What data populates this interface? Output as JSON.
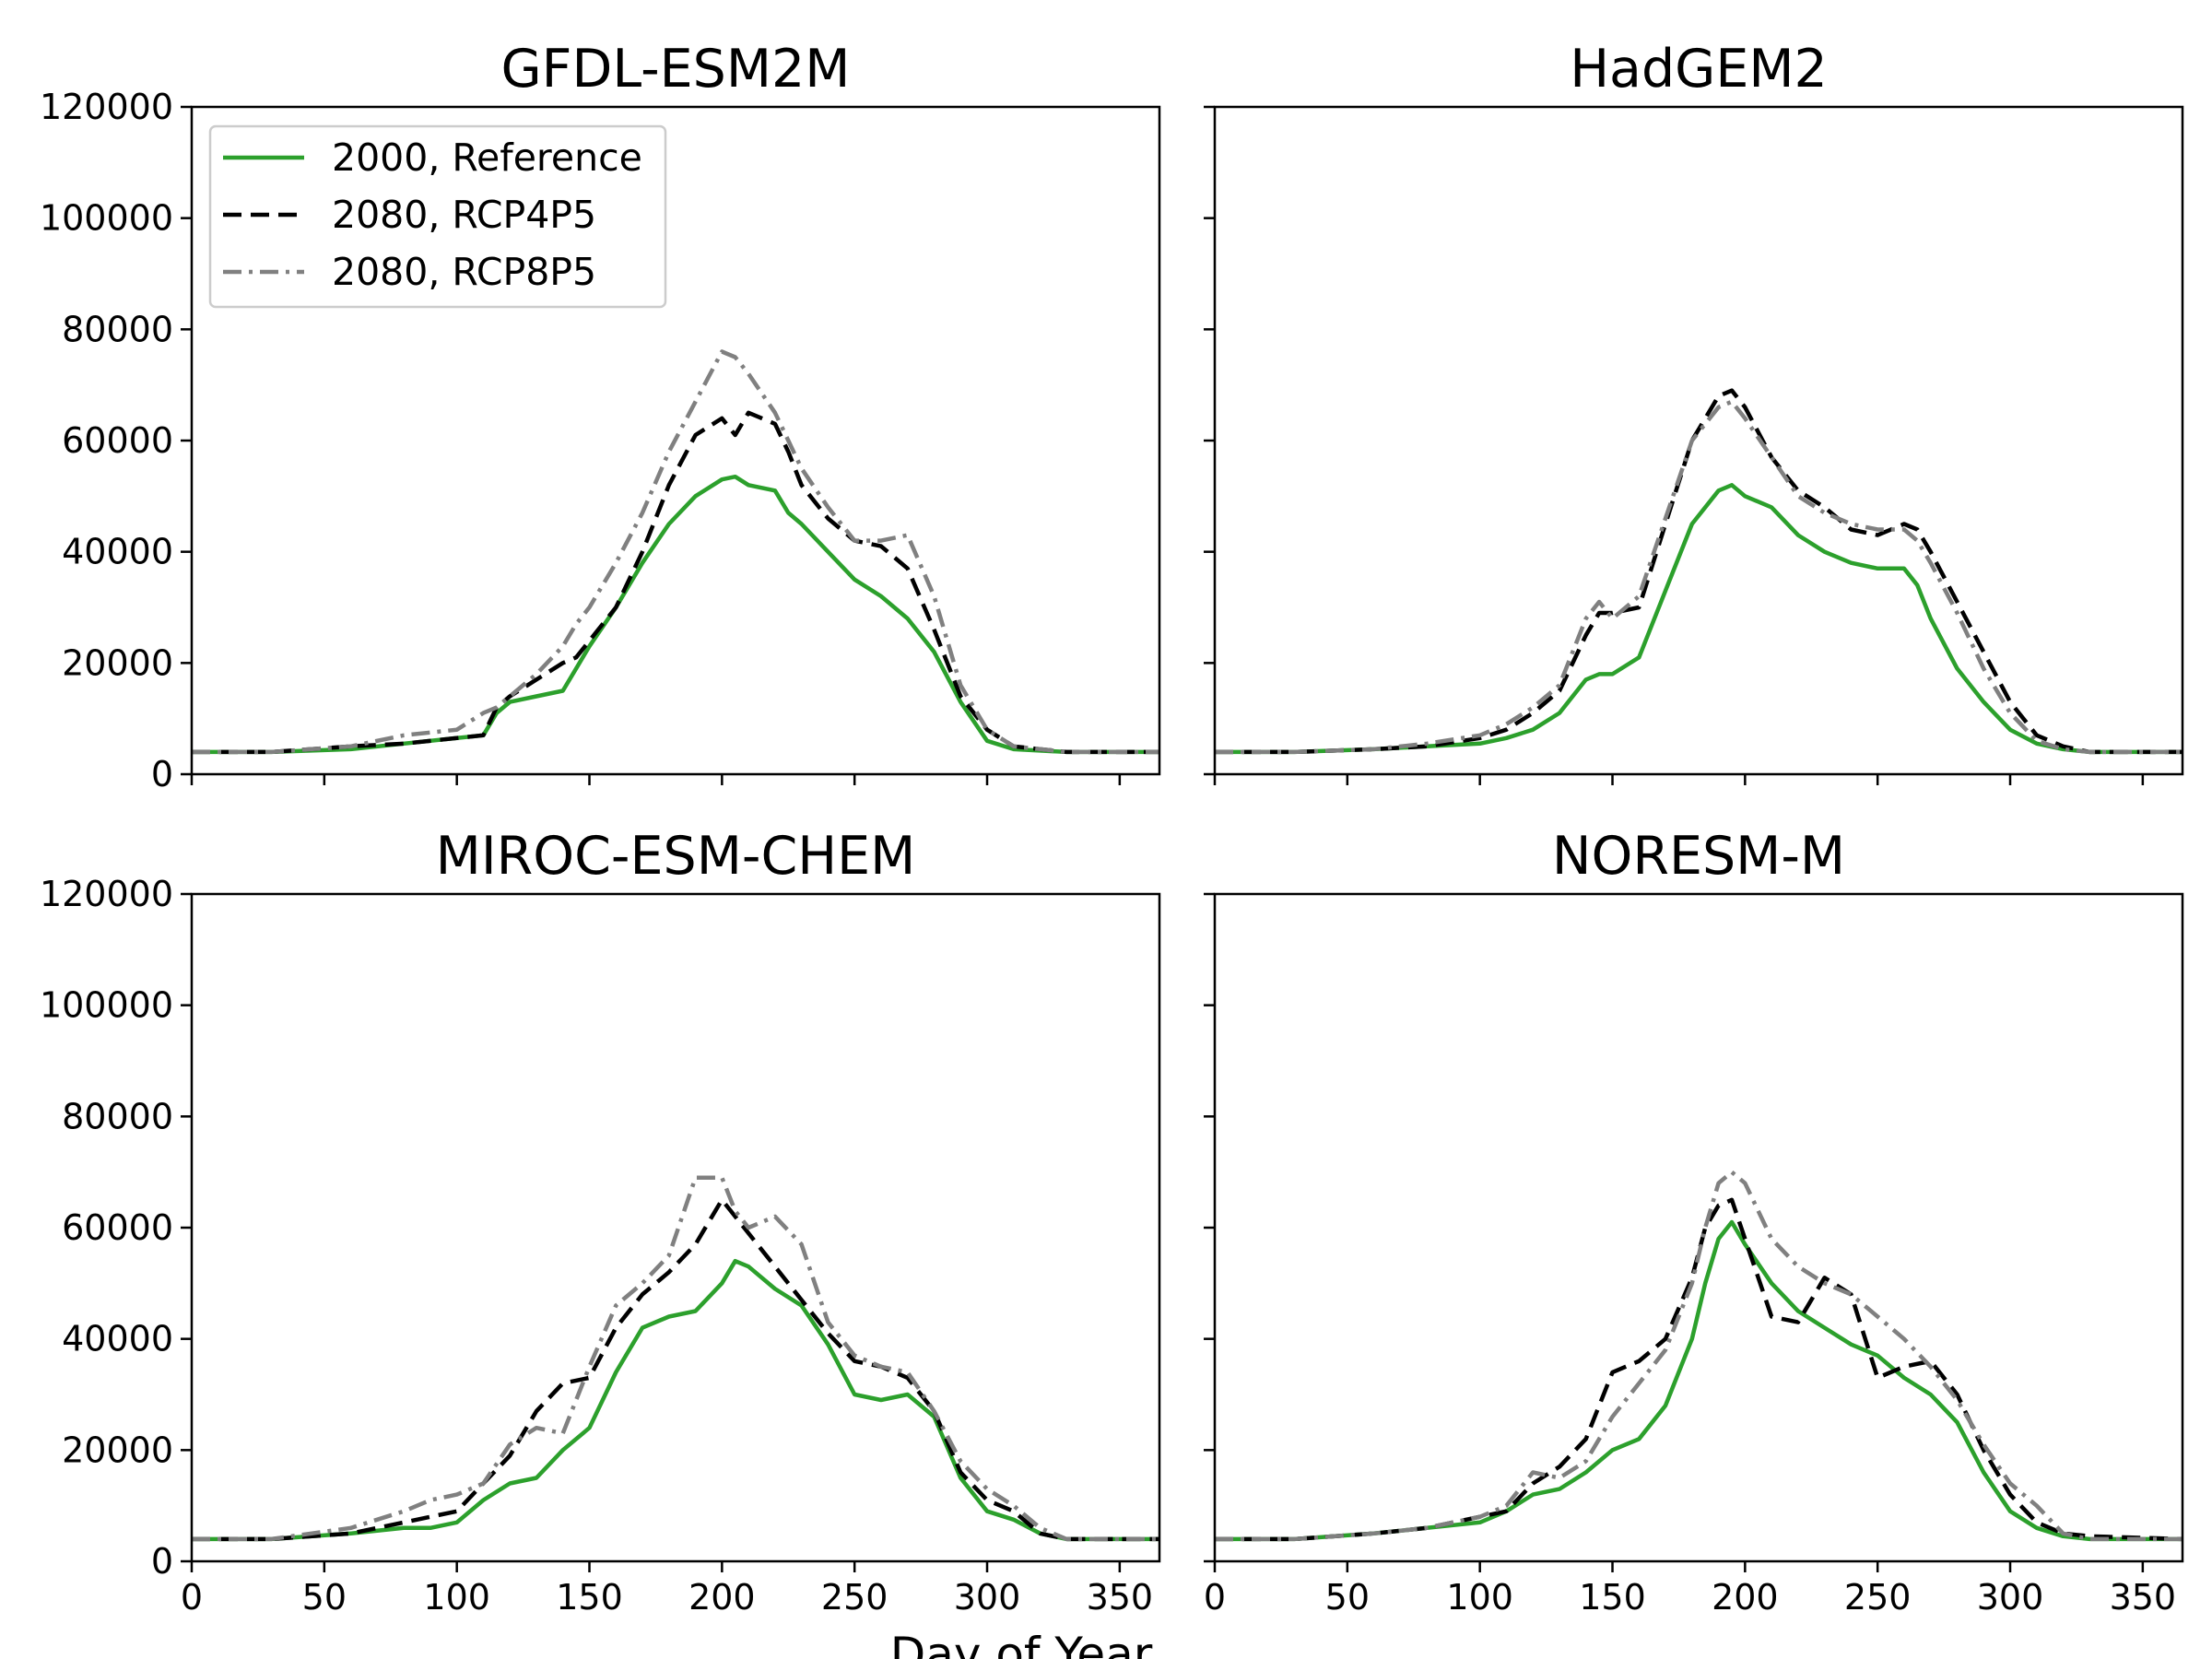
{
  "figure": {
    "xlabel": "Day of Year"
  },
  "legend": {
    "entries": [
      {
        "label": "2000, Reference",
        "color": "#2ca02c",
        "dash": "solid"
      },
      {
        "label": "2080, RCP4P5",
        "color": "#000000",
        "dash": "dashed"
      },
      {
        "label": "2080, RCP8P5",
        "color": "#808080",
        "dash": "dashdot"
      }
    ],
    "placement": "upper-left of first panel"
  },
  "chart_data": [
    {
      "type": "line",
      "title": "GFDL-ESM2M",
      "xlim": [
        0,
        365
      ],
      "ylim": [
        0,
        120000
      ],
      "xticks": [
        "0",
        "50",
        "100",
        "150",
        "200",
        "250",
        "300",
        "350"
      ],
      "yticks": [
        "0",
        "20000",
        "40000",
        "60000",
        "80000",
        "100000",
        "120000"
      ],
      "x": [
        0,
        30,
        60,
        80,
        100,
        110,
        115,
        120,
        130,
        140,
        145,
        150,
        160,
        170,
        180,
        190,
        200,
        205,
        210,
        220,
        225,
        230,
        240,
        250,
        260,
        270,
        280,
        290,
        300,
        310,
        330,
        365
      ],
      "series": [
        {
          "name": "2000, Reference",
          "values": [
            4000,
            4000,
            4500,
            5500,
            6500,
            7000,
            11000,
            13000,
            14000,
            15000,
            19000,
            23000,
            30000,
            38000,
            45000,
            50000,
            53000,
            53500,
            52000,
            51000,
            47000,
            45000,
            40000,
            35000,
            32000,
            28000,
            22000,
            13000,
            6000,
            4500,
            4000,
            4000
          ]
        },
        {
          "name": "2080, RCP4P5",
          "values": [
            4000,
            4000,
            5000,
            5500,
            6500,
            7000,
            12000,
            14000,
            17000,
            20000,
            21000,
            24000,
            30000,
            40000,
            52000,
            61000,
            64000,
            61000,
            65000,
            63000,
            58000,
            52000,
            46000,
            42000,
            41000,
            37000,
            26000,
            14000,
            8000,
            5000,
            4000,
            4000
          ]
        },
        {
          "name": "2080, RCP8P5",
          "values": [
            4000,
            4000,
            5000,
            7000,
            8000,
            11000,
            12000,
            14000,
            18000,
            23000,
            27000,
            30000,
            38000,
            47000,
            58000,
            67000,
            76000,
            75000,
            72000,
            65000,
            60000,
            55000,
            48000,
            42000,
            42000,
            43000,
            32000,
            16000,
            8000,
            5000,
            4000,
            4000
          ]
        }
      ]
    },
    {
      "type": "line",
      "title": "HadGEM2",
      "xlim": [
        0,
        365
      ],
      "ylim": [
        0,
        120000
      ],
      "x": [
        0,
        30,
        60,
        80,
        100,
        110,
        120,
        130,
        140,
        145,
        150,
        160,
        170,
        180,
        190,
        195,
        200,
        210,
        220,
        230,
        240,
        250,
        260,
        265,
        270,
        280,
        290,
        300,
        310,
        320,
        330,
        365
      ],
      "series": [
        {
          "name": "2000, Reference",
          "values": [
            4000,
            4000,
            4500,
            5000,
            5500,
            6500,
            8000,
            11000,
            17000,
            18000,
            18000,
            21000,
            33000,
            45000,
            51000,
            52000,
            50000,
            48000,
            43000,
            40000,
            38000,
            37000,
            37000,
            34000,
            28000,
            19000,
            13000,
            8000,
            5500,
            4500,
            4000,
            4000
          ]
        },
        {
          "name": "2080, RCP4P5",
          "values": [
            4000,
            4000,
            4500,
            5000,
            6500,
            8000,
            11000,
            15000,
            25000,
            29000,
            29000,
            30000,
            45000,
            60000,
            68000,
            69000,
            66000,
            57000,
            51000,
            48000,
            44000,
            43000,
            45000,
            44000,
            40000,
            31000,
            22000,
            13000,
            7000,
            5000,
            4000,
            4000
          ]
        },
        {
          "name": "2080, RCP8P5",
          "values": [
            4000,
            4000,
            4500,
            5500,
            7000,
            9000,
            12000,
            16000,
            28000,
            31000,
            28000,
            32000,
            46000,
            60000,
            66000,
            67000,
            64000,
            57000,
            50000,
            47000,
            45000,
            44000,
            44000,
            42000,
            38000,
            29000,
            19000,
            11000,
            6000,
            4500,
            4000,
            4000
          ]
        }
      ]
    },
    {
      "type": "line",
      "title": "MIROC-ESM-CHEM",
      "xlim": [
        0,
        365
      ],
      "ylim": [
        0,
        120000
      ],
      "x": [
        0,
        30,
        60,
        80,
        90,
        100,
        110,
        120,
        130,
        140,
        150,
        160,
        170,
        180,
        190,
        200,
        205,
        210,
        220,
        230,
        240,
        250,
        260,
        270,
        280,
        290,
        300,
        310,
        320,
        330,
        365
      ],
      "series": [
        {
          "name": "2000, Reference",
          "values": [
            4000,
            4000,
            5000,
            6000,
            6000,
            7000,
            11000,
            14000,
            15000,
            20000,
            24000,
            34000,
            42000,
            44000,
            45000,
            50000,
            54000,
            53000,
            49000,
            46000,
            39000,
            30000,
            29000,
            30000,
            26000,
            15000,
            9000,
            7500,
            5000,
            4000,
            4000
          ]
        },
        {
          "name": "2080, RCP4P5",
          "values": [
            4000,
            4000,
            5000,
            7000,
            8000,
            9000,
            14000,
            19000,
            27000,
            32000,
            33000,
            42000,
            48000,
            52000,
            57000,
            65000,
            62000,
            59000,
            53000,
            47000,
            41000,
            36000,
            35000,
            33000,
            27000,
            16000,
            11000,
            9000,
            5000,
            4000,
            4000
          ]
        },
        {
          "name": "2080, RCP8P5",
          "values": [
            4000,
            4000,
            6000,
            9000,
            11000,
            12000,
            14000,
            21000,
            24000,
            23000,
            35000,
            46000,
            50000,
            55000,
            69000,
            69000,
            63000,
            60000,
            62000,
            57000,
            43000,
            37000,
            35000,
            34000,
            27000,
            18000,
            13000,
            10000,
            6000,
            4000,
            4000
          ]
        }
      ]
    },
    {
      "type": "line",
      "title": "NORESM-M",
      "xlim": [
        0,
        365
      ],
      "ylim": [
        0,
        120000
      ],
      "x": [
        0,
        30,
        60,
        80,
        100,
        110,
        120,
        130,
        140,
        150,
        160,
        170,
        180,
        185,
        190,
        195,
        200,
        210,
        220,
        230,
        240,
        250,
        260,
        270,
        280,
        290,
        300,
        310,
        320,
        330,
        365
      ],
      "series": [
        {
          "name": "2000, Reference",
          "values": [
            4000,
            4000,
            5000,
            6000,
            7000,
            9000,
            12000,
            13000,
            16000,
            20000,
            22000,
            28000,
            40000,
            50000,
            58000,
            61000,
            57000,
            50000,
            45000,
            42000,
            39000,
            37000,
            33000,
            30000,
            25000,
            16000,
            9000,
            6000,
            4500,
            4000,
            4000
          ]
        },
        {
          "name": "2080, RCP4P5",
          "values": [
            4000,
            4000,
            5000,
            6000,
            8000,
            9000,
            14000,
            17000,
            22000,
            34000,
            36000,
            40000,
            51000,
            60000,
            64000,
            65000,
            58000,
            44000,
            43000,
            51000,
            48000,
            33000,
            35000,
            36000,
            30000,
            20000,
            12000,
            7000,
            5000,
            4500,
            4000
          ]
        },
        {
          "name": "2080, RCP8P5",
          "values": [
            4000,
            4000,
            5000,
            6000,
            8000,
            10000,
            16000,
            15000,
            18000,
            26000,
            32000,
            38000,
            50000,
            60000,
            68000,
            70000,
            68000,
            58000,
            53000,
            50000,
            48000,
            44000,
            40000,
            35000,
            29000,
            21000,
            14000,
            10000,
            5000,
            4000,
            4000
          ]
        }
      ]
    }
  ]
}
